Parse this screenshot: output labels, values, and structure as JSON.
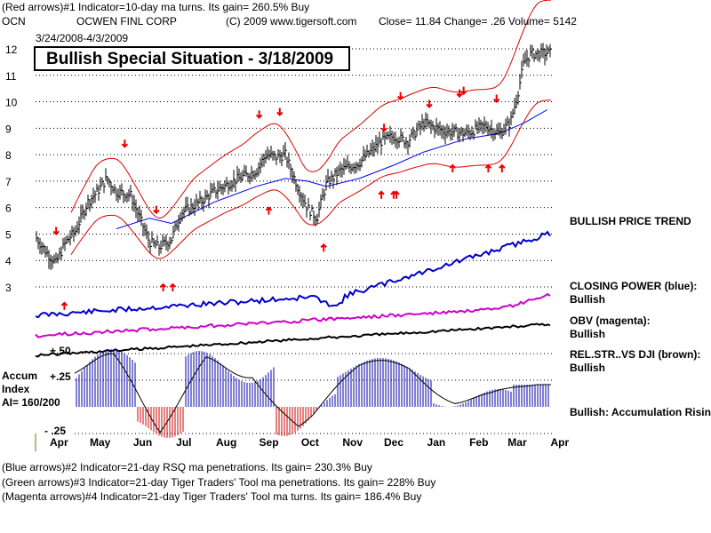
{
  "header": {
    "indicator1": "(Red arrows)#1 Indicator=10-day ma turns. Its gain= 260.5% Buy",
    "symbol": "OCN",
    "company": "OCWEN FINL CORP",
    "copyright": "(C) 2009 www.tigersoft.com",
    "quote": "Close=  11.84  Change= .26 Volume=  5142",
    "date_range": "3/24/2008-4/3/2009"
  },
  "chart_data": {
    "type": "line",
    "subtitle": "Bullish Special Situation - 3/18/2009",
    "x_ticks": [
      "Apr",
      "May",
      "Jun",
      "Jul",
      "Aug",
      "Sep",
      "Oct",
      "Nov",
      "Dec",
      "Jan",
      "Feb",
      "Mar",
      "Apr"
    ],
    "y_ticks": [
      12,
      11,
      10,
      9,
      8,
      7,
      6,
      5,
      4,
      3
    ],
    "ylim": [
      3,
      12.3
    ],
    "price_series": [
      {
        "name": "close",
        "x": [
          "2008-03-24",
          "2008-04-01",
          "2008-04-08",
          "2008-04-15",
          "2008-04-22",
          "2008-05-01",
          "2008-05-08",
          "2008-05-15",
          "2008-05-22",
          "2008-06-01",
          "2008-06-08",
          "2008-06-15",
          "2008-06-22",
          "2008-07-01",
          "2008-07-08",
          "2008-07-15",
          "2008-07-22",
          "2008-08-01",
          "2008-08-15",
          "2008-09-01",
          "2008-09-08",
          "2008-09-15",
          "2008-09-22",
          "2008-10-01",
          "2008-10-08",
          "2008-10-15",
          "2008-10-22",
          "2008-11-01",
          "2008-11-15",
          "2008-12-01",
          "2008-12-10",
          "2008-12-20",
          "2009-01-01",
          "2009-01-15",
          "2009-02-01",
          "2009-02-15",
          "2009-02-25",
          "2009-03-05",
          "2009-03-10",
          "2009-03-15",
          "2009-03-20",
          "2009-04-01"
        ],
        "y": [
          4.9,
          4.3,
          3.9,
          4.7,
          5.1,
          6.2,
          6.6,
          7.1,
          6.6,
          6.5,
          5.6,
          4.7,
          4.5,
          4.8,
          5.8,
          6.0,
          6.2,
          6.6,
          7.0,
          7.4,
          8.0,
          7.9,
          8.0,
          6.8,
          6.0,
          5.6,
          6.9,
          7.4,
          7.7,
          8.5,
          8.7,
          8.5,
          9.2,
          8.9,
          8.8,
          9.1,
          8.8,
          9.2,
          10.2,
          11.5,
          11.8,
          11.84
        ]
      },
      {
        "name": "moving average",
        "x": [
          "2008-05-22",
          "2008-06-15",
          "2008-07-01",
          "2008-08-01",
          "2008-09-01",
          "2008-09-22",
          "2008-10-08",
          "2008-10-22",
          "2008-11-15",
          "2008-12-10",
          "2009-01-01",
          "2009-02-01",
          "2009-02-25",
          "2009-03-15",
          "2009-04-01"
        ],
        "y": [
          5.2,
          5.6,
          5.4,
          6.2,
          6.8,
          7.1,
          7.0,
          6.8,
          7.1,
          7.6,
          8.1,
          8.6,
          8.8,
          9.2,
          9.7
        ]
      }
    ],
    "red_arrows": [
      {
        "x": "2008-04-08",
        "y": 5.0,
        "dir": "down"
      },
      {
        "x": "2008-04-14",
        "y": 2.4,
        "dir": "up"
      },
      {
        "x": "2008-05-28",
        "y": 8.3,
        "dir": "down"
      },
      {
        "x": "2008-06-20",
        "y": 5.8,
        "dir": "down"
      },
      {
        "x": "2008-06-25",
        "y": 3.1,
        "dir": "up"
      },
      {
        "x": "2008-07-02",
        "y": 3.1,
        "dir": "up"
      },
      {
        "x": "2008-09-03",
        "y": 9.4,
        "dir": "down"
      },
      {
        "x": "2008-09-10",
        "y": 6.0,
        "dir": "up"
      },
      {
        "x": "2008-09-18",
        "y": 9.5,
        "dir": "down"
      },
      {
        "x": "2008-10-20",
        "y": 4.6,
        "dir": "up"
      },
      {
        "x": "2008-12-01",
        "y": 6.6,
        "dir": "up"
      },
      {
        "x": "2008-12-10",
        "y": 6.6,
        "dir": "up"
      },
      {
        "x": "2008-12-12",
        "y": 6.6,
        "dir": "up"
      },
      {
        "x": "2008-12-03",
        "y": 8.9,
        "dir": "down"
      },
      {
        "x": "2008-12-15",
        "y": 10.1,
        "dir": "down"
      },
      {
        "x": "2009-01-05",
        "y": 9.8,
        "dir": "down"
      },
      {
        "x": "2009-01-22",
        "y": 7.6,
        "dir": "up"
      },
      {
        "x": "2009-01-27",
        "y": 10.2,
        "dir": "down"
      },
      {
        "x": "2009-01-30",
        "y": 10.3,
        "dir": "down"
      },
      {
        "x": "2009-02-17",
        "y": 7.6,
        "dir": "up"
      },
      {
        "x": "2009-02-23",
        "y": 10.0,
        "dir": "down"
      },
      {
        "x": "2009-02-27",
        "y": 7.6,
        "dir": "up"
      }
    ],
    "indicators": [
      {
        "name": "CLOSING POWER (blue)",
        "color": "#0000cc"
      },
      {
        "name": "OBV (magenta)",
        "color": "#cc00cc"
      },
      {
        "name": "REL.STR..VS DJI (brown)",
        "color": "#000000"
      }
    ]
  },
  "labels": {
    "bullish_trend": "BULLISH PRICE TREND",
    "closing_power": "CLOSING POWER (blue):",
    "closing_power_state": "Bullish",
    "obv": "OBV (magenta):",
    "obv_state": "Bullish",
    "relstr": "REL.STR..VS DJI (brown):",
    "relstr_state": "Bullish",
    "accum_rising": "Bullish: Accumulation Rising",
    "accum": "Accum",
    "index": "Index",
    "ai": "AI= 160/200",
    "plus50": "+.50",
    "plus25": "+.25",
    "minus25": "- .25"
  },
  "footer": {
    "indicator2": "(Blue arrows)#2 Indicator=21-day RSQ ma penetrations. Its gain= 230.3% Buy",
    "indicator3": "(Green arrows)#3 Indicator=21-day Tiger Traders' Tool ma penetrations. Its gain= 228% Buy",
    "indicator4": "(Magenta arrows)#4 Indicator=21-day Tiger Traders' Tool ma turns. Its gain= 186.4% Buy"
  },
  "colors": {
    "price": "#000000",
    "bands": "#dd0000",
    "ma": "#0000ee",
    "closing_power": "#0000cc",
    "obv": "#cc00cc",
    "relstr": "#000000",
    "accum_pos": "#0000aa",
    "accum_neg": "#cc0000"
  }
}
